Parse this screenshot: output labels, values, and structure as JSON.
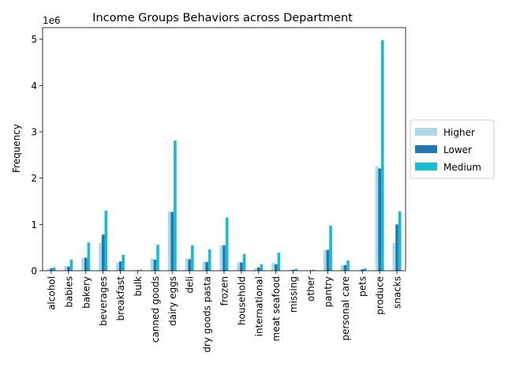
{
  "chart_data": {
    "type": "bar",
    "title": "Income Groups Behaviors across Department",
    "xlabel": "",
    "ylabel": "Frequency",
    "y_offset_text": "1e6",
    "y_multiplier": 1000000,
    "ylim": [
      0,
      5.25
    ],
    "yticks": [
      0,
      1,
      2,
      3,
      4,
      5
    ],
    "grid": false,
    "legend_position": "center-right, outside plot",
    "categories": [
      "alcohol",
      "babies",
      "bakery",
      "beverages",
      "breakfast",
      "bulk",
      "canned goods",
      "dairy eggs",
      "deli",
      "dry goods pasta",
      "frozen",
      "household",
      "international",
      "meat seafood",
      "missing",
      "other",
      "pantry",
      "personal care",
      "pets",
      "produce",
      "snacks"
    ],
    "series": [
      {
        "name": "Higher",
        "color": "#add8e6",
        "values": [
          0.04,
          0.1,
          0.28,
          0.6,
          0.17,
          0.01,
          0.27,
          1.28,
          0.26,
          0.2,
          0.55,
          0.18,
          0.06,
          0.17,
          0.02,
          0.01,
          0.45,
          0.12,
          0.02,
          2.26,
          0.6
        ]
      },
      {
        "name": "Lower",
        "color": "#1f77b4",
        "values": [
          0.05,
          0.09,
          0.28,
          0.78,
          0.2,
          0.01,
          0.24,
          1.27,
          0.25,
          0.19,
          0.55,
          0.18,
          0.07,
          0.14,
          0.02,
          0.01,
          0.45,
          0.12,
          0.03,
          2.21,
          1.0
        ]
      },
      {
        "name": "Medium",
        "color": "#17becf",
        "values": [
          0.07,
          0.24,
          0.61,
          1.3,
          0.34,
          0.02,
          0.56,
          2.81,
          0.55,
          0.46,
          1.15,
          0.36,
          0.14,
          0.39,
          0.04,
          0.02,
          0.97,
          0.22,
          0.05,
          4.98,
          1.28
        ]
      }
    ]
  }
}
